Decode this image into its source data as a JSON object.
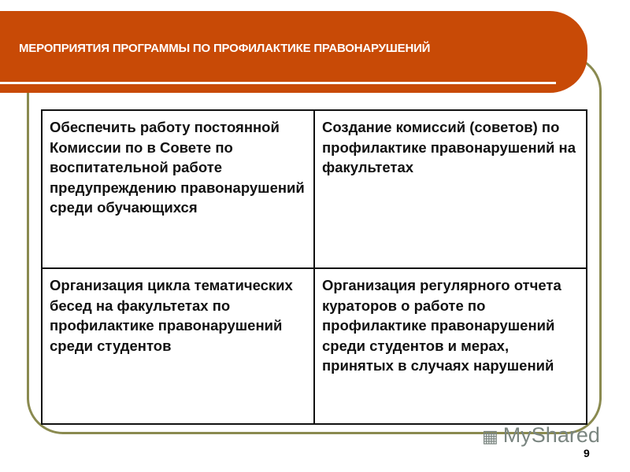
{
  "slide": {
    "title": "МЕРОПРИЯТИЯ ПРОГРАММЫ ПО ПРОФИЛАКТИКЕ ПРАВОНАРУШЕНИЙ",
    "accent_color": "#c84a06",
    "frame_color": "#8a8a50",
    "table": [
      [
        "Обеспечить работу постоянной Комиссии по в Совете по воспитательной работе предупреждению правонарушений среди обучающихся",
        "Создание комиссий (советов) по профилактике правонарушений на факультетах"
      ],
      [
        "Организация цикла тематических бесед на факультетах по профилактике правонарушений среди студентов",
        "Организация регулярного отчета кураторов о работе по профилактике правонарушений среди студентов и мерах, принятых в случаях нарушений"
      ]
    ],
    "page_number": "9"
  },
  "watermark": {
    "text": "MyShared",
    "icon": "presentation-board-icon"
  }
}
